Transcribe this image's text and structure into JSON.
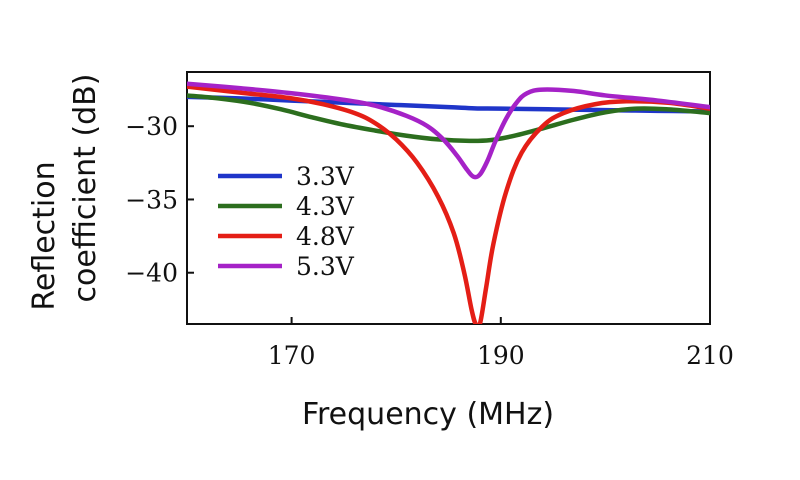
{
  "chart_data": {
    "type": "line",
    "xlabel": "Frequency (MHz)",
    "ylabel_line1": "Reflection",
    "ylabel_line2": "coefficient (dB)",
    "xlim": [
      160,
      210
    ],
    "ylim": [
      -43.5,
      -26.3
    ],
    "xticks": [
      170,
      190,
      210
    ],
    "xtick_labels": [
      "170",
      "190",
      "210"
    ],
    "yticks": [
      -30,
      -35,
      -40
    ],
    "ytick_labels": [
      "−30",
      "−35",
      "−40"
    ],
    "grid": false,
    "legend_position": "lower-left",
    "series": [
      {
        "name": "3.3V",
        "color": "#1f35c9",
        "points": [
          [
            160,
            -28.0
          ],
          [
            165,
            -28.1
          ],
          [
            170,
            -28.25
          ],
          [
            175,
            -28.4
          ],
          [
            180,
            -28.55
          ],
          [
            185,
            -28.7
          ],
          [
            187.5,
            -28.78
          ],
          [
            190,
            -28.8
          ],
          [
            195,
            -28.85
          ],
          [
            200,
            -28.9
          ],
          [
            205,
            -28.95
          ],
          [
            210,
            -29.0
          ]
        ]
      },
      {
        "name": "4.3V",
        "color": "#2c6e1e",
        "points": [
          [
            160,
            -27.9
          ],
          [
            163,
            -28.1
          ],
          [
            166,
            -28.4
          ],
          [
            169,
            -28.85
          ],
          [
            172,
            -29.4
          ],
          [
            175,
            -29.9
          ],
          [
            178,
            -30.3
          ],
          [
            181,
            -30.65
          ],
          [
            184,
            -30.9
          ],
          [
            187,
            -31.0
          ],
          [
            189,
            -30.95
          ],
          [
            191,
            -30.7
          ],
          [
            194,
            -30.15
          ],
          [
            197,
            -29.55
          ],
          [
            200,
            -29.05
          ],
          [
            203,
            -28.8
          ],
          [
            206,
            -28.85
          ],
          [
            210,
            -29.1
          ]
        ]
      },
      {
        "name": "4.8V",
        "color": "#e41e16",
        "points": [
          [
            160,
            -27.3
          ],
          [
            165,
            -27.7
          ],
          [
            170,
            -28.1
          ],
          [
            173,
            -28.5
          ],
          [
            176,
            -29.1
          ],
          [
            178,
            -29.8
          ],
          [
            180,
            -30.9
          ],
          [
            182,
            -32.5
          ],
          [
            184,
            -34.8
          ],
          [
            185.5,
            -37.3
          ],
          [
            186.5,
            -40.0
          ],
          [
            187.2,
            -42.5
          ],
          [
            187.6,
            -43.5
          ],
          [
            188.0,
            -43.5
          ],
          [
            188.6,
            -41.0
          ],
          [
            189.3,
            -38.0
          ],
          [
            190.5,
            -34.5
          ],
          [
            192,
            -31.8
          ],
          [
            194,
            -30.0
          ],
          [
            196,
            -29.1
          ],
          [
            199,
            -28.5
          ],
          [
            202,
            -28.3
          ],
          [
            206,
            -28.4
          ],
          [
            210,
            -28.8
          ]
        ]
      },
      {
        "name": "5.3V",
        "color": "#a522c7",
        "points": [
          [
            160,
            -27.1
          ],
          [
            165,
            -27.4
          ],
          [
            170,
            -27.75
          ],
          [
            175,
            -28.2
          ],
          [
            178,
            -28.6
          ],
          [
            181,
            -29.3
          ],
          [
            183,
            -30.0
          ],
          [
            184.5,
            -30.9
          ],
          [
            185.8,
            -32.0
          ],
          [
            186.8,
            -33.0
          ],
          [
            187.4,
            -33.45
          ],
          [
            188,
            -33.3
          ],
          [
            188.7,
            -32.4
          ],
          [
            189.5,
            -31.0
          ],
          [
            190.5,
            -29.5
          ],
          [
            191.5,
            -28.4
          ],
          [
            192.5,
            -27.75
          ],
          [
            194,
            -27.5
          ],
          [
            197,
            -27.6
          ],
          [
            200,
            -27.9
          ],
          [
            205,
            -28.25
          ],
          [
            210,
            -28.7
          ]
        ]
      }
    ]
  }
}
